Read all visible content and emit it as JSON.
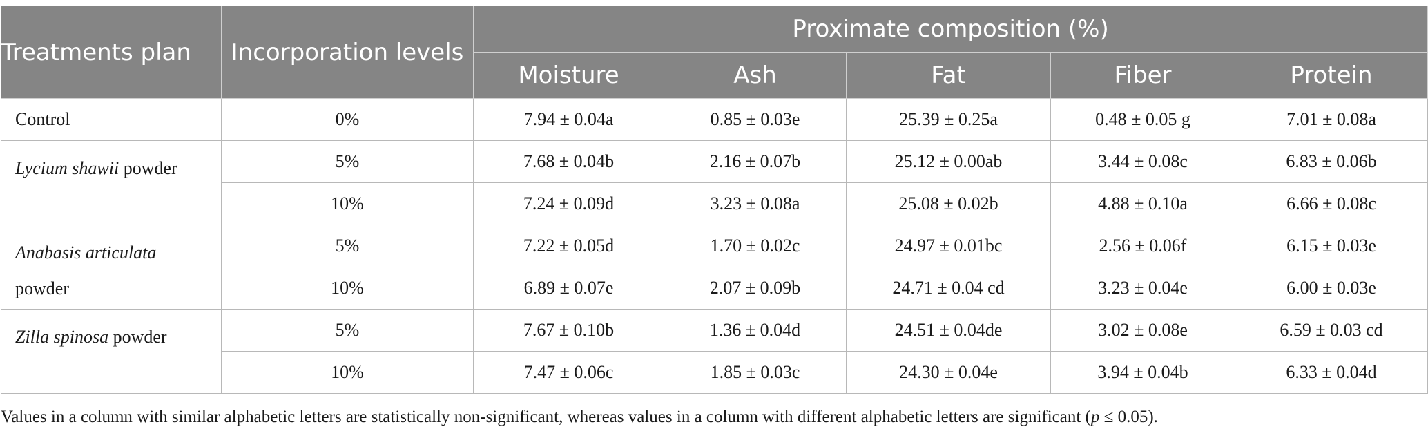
{
  "table": {
    "headers": {
      "treatments_plan": "Treatments plan",
      "incorporation_levels": "Incorporation levels",
      "proximate_composition": "Proximate composition (%)",
      "columns": [
        "Moisture",
        "Ash",
        "Fat",
        "Fiber",
        "Protein"
      ]
    },
    "groups": [
      {
        "name_italic": "",
        "name_rest": "Control",
        "rows": [
          {
            "level": "0%",
            "values": [
              "7.94 ± 0.04a",
              "0.85 ± 0.03e",
              "25.39 ± 0.25a",
              "0.48 ± 0.05 g",
              "7.01 ± 0.08a"
            ]
          }
        ]
      },
      {
        "name_italic": "Lycium shawii",
        "name_rest": " powder",
        "rows": [
          {
            "level": "5%",
            "values": [
              "7.68 ± 0.04b",
              "2.16 ± 0.07b",
              "25.12 ± 0.00ab",
              "3.44 ± 0.08c",
              "6.83 ± 0.06b"
            ]
          },
          {
            "level": "10%",
            "values": [
              "7.24 ± 0.09d",
              "3.23 ± 0.08a",
              "25.08 ± 0.02b",
              "4.88 ± 0.10a",
              "6.66 ± 0.08c"
            ]
          }
        ]
      },
      {
        "name_italic": "Anabasis articulata",
        "name_rest": " powder",
        "rows": [
          {
            "level": "5%",
            "values": [
              "7.22 ± 0.05d",
              "1.70 ± 0.02c",
              "24.97 ± 0.01bc",
              "2.56 ± 0.06f",
              "6.15 ± 0.03e"
            ]
          },
          {
            "level": "10%",
            "values": [
              "6.89 ± 0.07e",
              "2.07 ± 0.09b",
              "24.71 ± 0.04 cd",
              "3.23 ± 0.04e",
              "6.00 ± 0.03e"
            ]
          }
        ]
      },
      {
        "name_italic": "Zilla spinosa",
        "name_rest": " powder",
        "rows": [
          {
            "level": "5%",
            "values": [
              "7.67 ± 0.10b",
              "1.36 ± 0.04d",
              "24.51 ± 0.04de",
              "3.02 ± 0.08e",
              "6.59 ± 0.03 cd"
            ]
          },
          {
            "level": "10%",
            "values": [
              "7.47 ± 0.06c",
              "1.85 ± 0.03c",
              "24.30 ± 0.04e",
              "3.94 ± 0.04b",
              "6.33 ± 0.04d"
            ]
          }
        ]
      }
    ]
  },
  "footnote": {
    "before": "Values in a column with similar alphabetic letters are statistically non-significant, whereas values in a column with different alphabetic letters are significant (",
    "p": "p",
    "after": " ≤ 0.05)."
  }
}
